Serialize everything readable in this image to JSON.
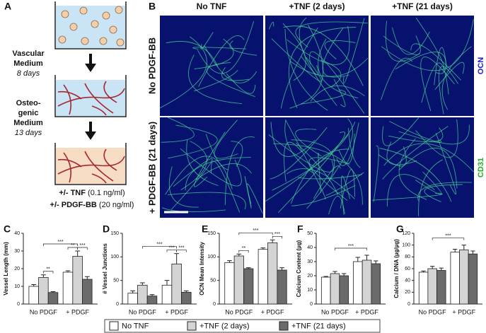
{
  "panel_a": {
    "label": "A",
    "steps": [
      {
        "medium": [
          "Vascular",
          "Medium"
        ],
        "duration": "8 days"
      },
      {
        "medium": [
          "Osteo-",
          "genic",
          "Medium"
        ],
        "duration": "13 days"
      }
    ],
    "treatments": [
      {
        "name": "+/- TNF",
        "dose": "(0.1 ng/ml)"
      },
      {
        "name": "+/- PDGF-BB",
        "dose": "(20 ng/ml)"
      }
    ]
  },
  "panel_b": {
    "label": "B",
    "columns": [
      "No TNF",
      "+TNF (2 days)",
      "+TNF (21 days)"
    ],
    "rows": [
      "No PDGF-BB",
      "+ PDGF-BB (21 days)"
    ],
    "channels": [
      {
        "name": "OCN",
        "color": "#1a1adb"
      },
      {
        "name": "CD31",
        "color": "#22b022"
      }
    ]
  },
  "chart_data": [
    {
      "type": "bar",
      "panel_label": "C",
      "y_label": "Vessel Length (mm)",
      "categories": [
        "No PDGF",
        "+ PDGF"
      ],
      "series": [
        {
          "color": "#ffffff",
          "values": [
            10,
            18
          ],
          "errors": [
            1,
            0.8
          ]
        },
        {
          "color": "#d4d4d4",
          "values": [
            15,
            27
          ],
          "errors": [
            1.5,
            3
          ]
        },
        {
          "color": "#6b6b6b",
          "values": [
            6.5,
            14
          ],
          "errors": [
            0.5,
            1.5
          ]
        }
      ],
      "ylim": [
        0,
        40
      ],
      "yticks": [
        0,
        10,
        20,
        30,
        40
      ],
      "annotations": [
        "***",
        "**",
        "**",
        "***"
      ]
    },
    {
      "type": "bar",
      "panel_label": "D",
      "y_label": "# Vessel Junctions",
      "categories": [
        "No PDGF",
        "+ PDGF"
      ],
      "series": [
        {
          "color": "#ffffff",
          "values": [
            23,
            40
          ],
          "errors": [
            5,
            10
          ]
        },
        {
          "color": "#d4d4d4",
          "values": [
            40,
            85
          ],
          "errors": [
            5,
            22
          ]
        },
        {
          "color": "#6b6b6b",
          "values": [
            17,
            25
          ],
          "errors": [
            3,
            3
          ]
        }
      ],
      "ylim": [
        0,
        150
      ],
      "yticks": [
        0,
        50,
        100,
        150
      ],
      "annotations": [
        "***",
        "***",
        "***"
      ]
    },
    {
      "type": "bar",
      "panel_label": "E",
      "y_label": "OCN Mean Intensity",
      "categories": [
        "No PDGF",
        "+ PDGF"
      ],
      "series": [
        {
          "color": "#ffffff",
          "values": [
            88,
            116
          ],
          "errors": [
            4,
            3
          ]
        },
        {
          "color": "#d4d4d4",
          "values": [
            102,
            130
          ],
          "errors": [
            4,
            6
          ]
        },
        {
          "color": "#6b6b6b",
          "values": [
            75,
            72
          ],
          "errors": [
            2,
            5
          ]
        }
      ],
      "ylim": [
        0,
        150
      ],
      "yticks": [
        0,
        50,
        100,
        150
      ],
      "annotations": [
        "***",
        "**",
        "***"
      ]
    },
    {
      "type": "bar",
      "panel_label": "F",
      "y_label": "Calcium Content (µg)",
      "categories": [
        "No PDGF",
        "+ PDGF"
      ],
      "series": [
        {
          "color": "#ffffff",
          "values": [
            19,
            30
          ],
          "errors": [
            0.5,
            3
          ]
        },
        {
          "color": "#d4d4d4",
          "values": [
            21.5,
            31
          ],
          "errors": [
            1.5,
            3.5
          ]
        },
        {
          "color": "#6b6b6b",
          "values": [
            20,
            28.5
          ],
          "errors": [
            1.5,
            2
          ]
        }
      ],
      "ylim": [
        0,
        50
      ],
      "yticks": [
        0,
        10,
        20,
        30,
        40,
        50
      ],
      "annotations": [
        "***"
      ]
    },
    {
      "type": "bar",
      "panel_label": "G",
      "y_label": "Calcium / DNA (µg/µg)",
      "categories": [
        "No PDGF",
        "+ PDGF"
      ],
      "series": [
        {
          "color": "#ffffff",
          "values": [
            54,
            88
          ],
          "errors": [
            2,
            5
          ]
        },
        {
          "color": "#d4d4d4",
          "values": [
            60,
            92
          ],
          "errors": [
            4,
            8
          ]
        },
        {
          "color": "#6b6b6b",
          "values": [
            57,
            85
          ],
          "errors": [
            4,
            5
          ]
        }
      ],
      "ylim": [
        0,
        120
      ],
      "yticks": [
        0,
        20,
        40,
        60,
        80,
        100,
        120
      ],
      "annotations": [
        "***"
      ]
    }
  ],
  "legend": [
    {
      "label": "No TNF",
      "color": "#ffffff"
    },
    {
      "label": "+TNF (2 days)",
      "color": "#d4d4d4"
    },
    {
      "label": "+TNF (21 days)",
      "color": "#6b6b6b"
    }
  ]
}
